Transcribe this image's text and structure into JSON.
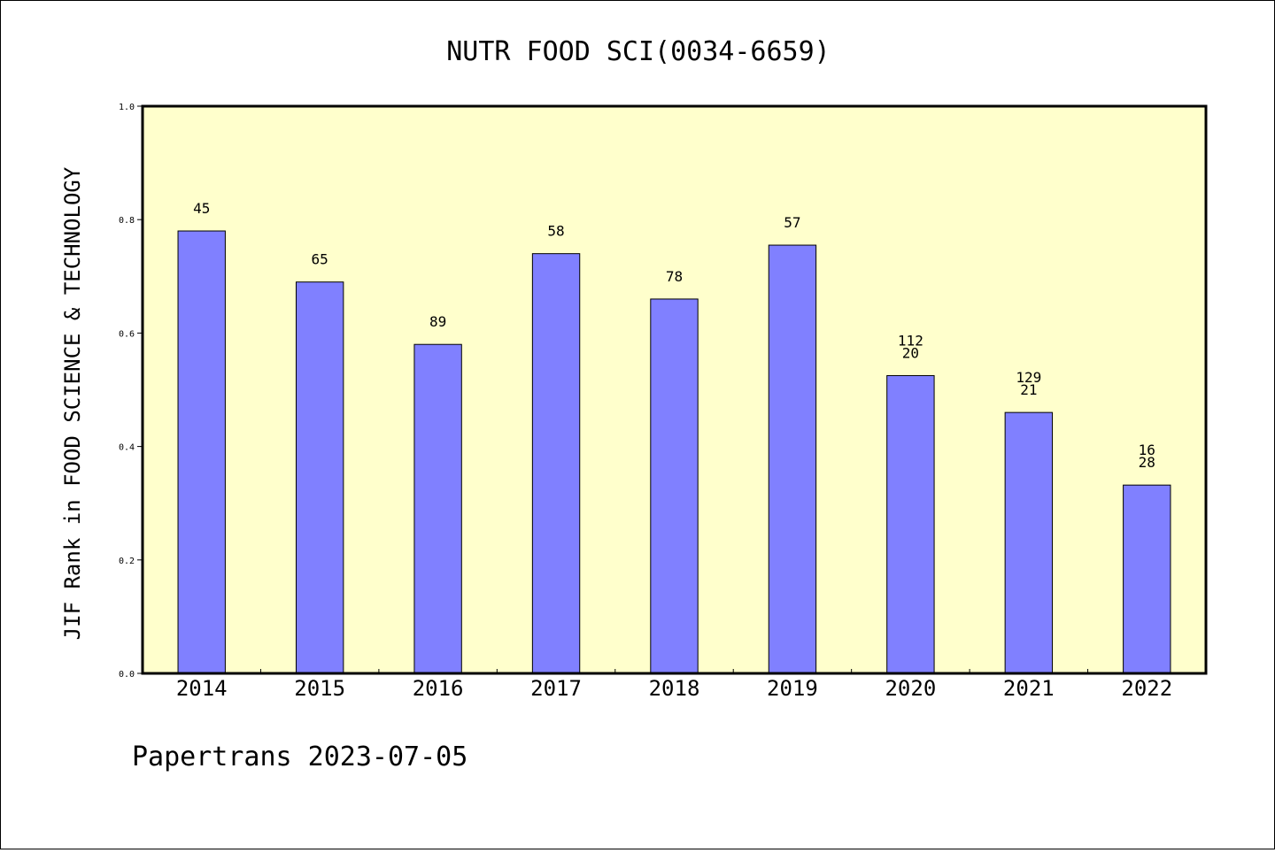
{
  "chart_data": {
    "type": "bar",
    "title": "NUTR FOOD SCI(0034-6659)",
    "ylabel": "JIF Rank in FOOD SCIENCE & TECHNOLOGY",
    "xlabel": "",
    "ylim": [
      0,
      1.0
    ],
    "yticks": [
      "0.0",
      "0.2",
      "0.4",
      "0.6",
      "0.8",
      "1.0"
    ],
    "categories": [
      "2014",
      "2015",
      "2016",
      "2017",
      "2018",
      "2019",
      "2020",
      "2021",
      "2022"
    ],
    "values": [
      0.78,
      0.69,
      0.58,
      0.74,
      0.66,
      0.755,
      0.525,
      0.46,
      0.332
    ],
    "bar_labels": [
      [
        "45"
      ],
      [
        "65"
      ],
      [
        "89"
      ],
      [
        "58"
      ],
      [
        "78"
      ],
      [
        "57"
      ],
      [
        "112",
        "20"
      ],
      [
        "129",
        "21"
      ],
      [
        "16",
        "28"
      ]
    ],
    "grid": false,
    "colors": {
      "bar": "#8080ff",
      "plot_background": "#ffffcc"
    }
  },
  "footer": {
    "text": "Papertrans 2023-07-05"
  }
}
